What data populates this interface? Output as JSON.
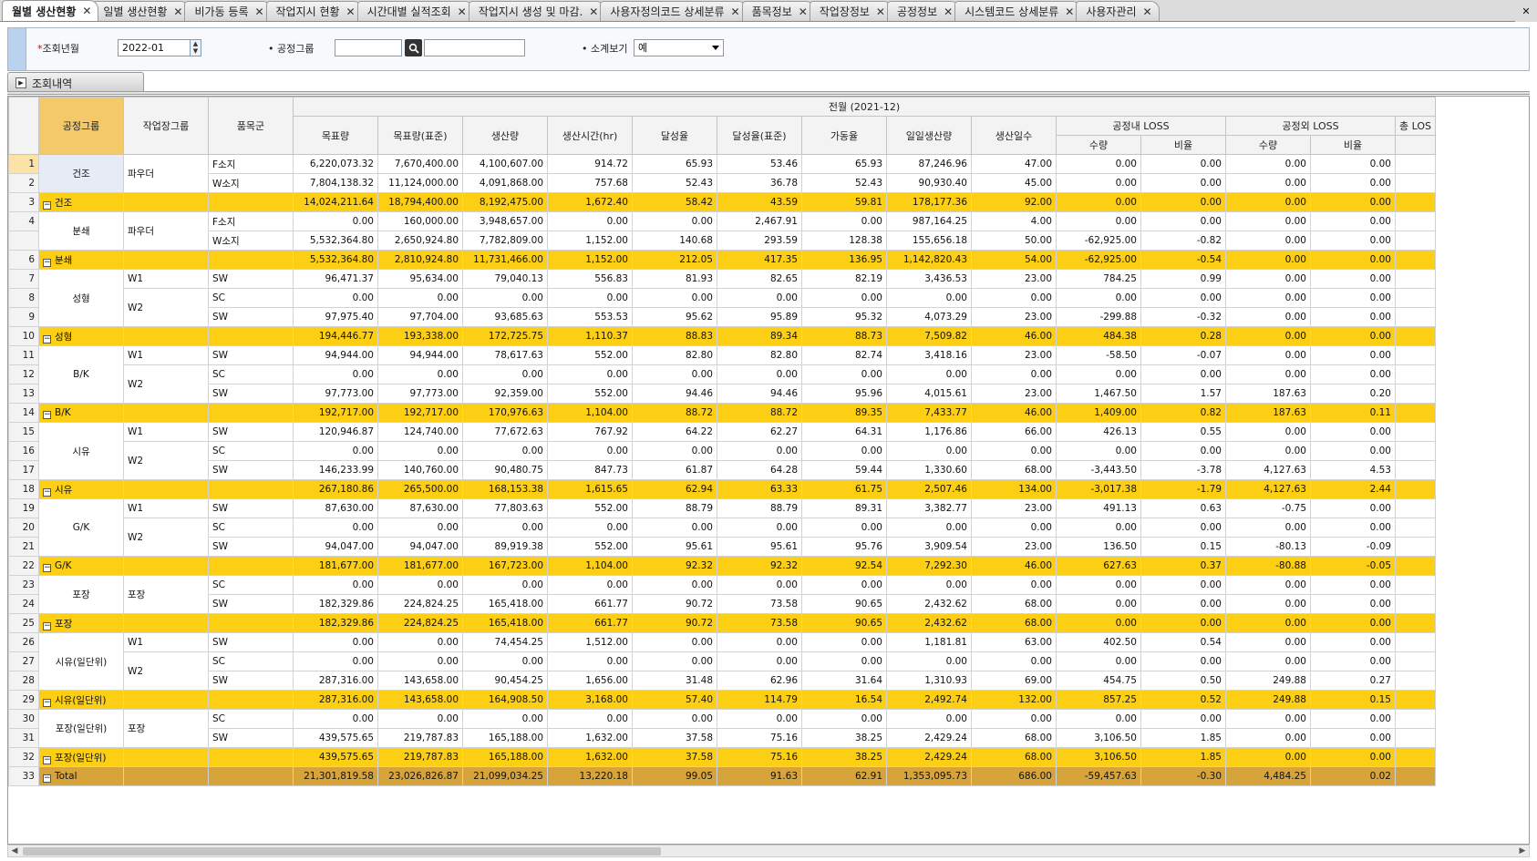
{
  "tabs": [
    {
      "label": "월별 생산현황",
      "active": true
    },
    {
      "label": "일별 생산현황"
    },
    {
      "label": "비가동 등록"
    },
    {
      "label": "작업지시 현황"
    },
    {
      "label": "시간대별 실적조회"
    },
    {
      "label": "작업지시 생성 및 마감."
    },
    {
      "label": "사용자정의코드 상세분류"
    },
    {
      "label": "품목정보"
    },
    {
      "label": "작업장정보"
    },
    {
      "label": "공정정보"
    },
    {
      "label": "시스템코드 상세분류"
    },
    {
      "label": "사용자관리"
    }
  ],
  "tab_close_glyph": "✕",
  "window_close_glyph": "✕",
  "filter": {
    "month_label": "조회년월",
    "month_value": "2022-01",
    "group_label": "공정그룹",
    "subtotal_label": "소계보기",
    "subtotal_value": "예"
  },
  "section_tab": "조회내역",
  "grid": {
    "header_top": {
      "period": "전월 (2021-12)",
      "loss_in": "공정내 LOSS",
      "loss_out": "공정외 LOSS",
      "loss_total": "총 LOS"
    },
    "header_cols": {
      "process_group": "공정그룹",
      "workshop_group": "작업장그룹",
      "item_group": "품목군",
      "target": "목표량",
      "target_std": "목표량(표준)",
      "production": "생산량",
      "prod_hours": "생산시간(hr)",
      "achievement": "달성율",
      "achievement_std": "달성율(표준)",
      "utilization": "가동율",
      "daily_prod": "일일생산량",
      "prod_days": "생산일수",
      "qty": "수량",
      "ratio": "비율"
    },
    "rows": [
      {
        "no": "1",
        "pg": "건조",
        "wg": "파우더",
        "item": "F소지",
        "v": [
          "6,220,073.32",
          "7,670,400.00",
          "4,100,607.00",
          "914.72",
          "65.93",
          "53.46",
          "65.93",
          "87,246.96",
          "47.00",
          "0.00",
          "0.00",
          "0.00",
          "0.00"
        ]
      },
      {
        "no": "2",
        "item": "W소지",
        "v": [
          "7,804,138.32",
          "11,124,000.00",
          "4,091,868.00",
          "757.68",
          "52.43",
          "36.78",
          "52.43",
          "90,930.40",
          "45.00",
          "0.00",
          "0.00",
          "0.00",
          "0.00"
        ]
      },
      {
        "no": "3",
        "type": "sub",
        "label": "건조",
        "v": [
          "14,024,211.64",
          "18,794,400.00",
          "8,192,475.00",
          "1,672.40",
          "58.42",
          "43.59",
          "59.81",
          "178,177.36",
          "92.00",
          "0.00",
          "0.00",
          "0.00",
          "0.00"
        ]
      },
      {
        "no": "4",
        "pg": "분쇄",
        "wg": "파우더",
        "item": "F소지",
        "v": [
          "0.00",
          "160,000.00",
          "3,948,657.00",
          "0.00",
          "0.00",
          "2,467.91",
          "0.00",
          "987,164.25",
          "4.00",
          "0.00",
          "0.00",
          "0.00",
          "0.00"
        ]
      },
      {
        "no": "",
        "item": "W소지",
        "v": [
          "5,532,364.80",
          "2,650,924.80",
          "7,782,809.00",
          "1,152.00",
          "140.68",
          "293.59",
          "128.38",
          "155,656.18",
          "50.00",
          "-62,925.00",
          "-0.82",
          "0.00",
          "0.00"
        ]
      },
      {
        "no": "6",
        "type": "sub",
        "label": "분쇄",
        "v": [
          "5,532,364.80",
          "2,810,924.80",
          "11,731,466.00",
          "1,152.00",
          "212.05",
          "417.35",
          "136.95",
          "1,142,820.43",
          "54.00",
          "-62,925.00",
          "-0.54",
          "0.00",
          "0.00"
        ]
      },
      {
        "no": "7",
        "pg": "성형",
        "wg": "W1",
        "item": "SW",
        "v": [
          "96,471.37",
          "95,634.00",
          "79,040.13",
          "556.83",
          "81.93",
          "82.65",
          "82.19",
          "3,436.53",
          "23.00",
          "784.25",
          "0.99",
          "0.00",
          "0.00"
        ]
      },
      {
        "no": "8",
        "wg": "W2",
        "item": "SC",
        "v": [
          "0.00",
          "0.00",
          "0.00",
          "0.00",
          "0.00",
          "0.00",
          "0.00",
          "0.00",
          "0.00",
          "0.00",
          "0.00",
          "0.00",
          "0.00"
        ]
      },
      {
        "no": "9",
        "item": "SW",
        "v": [
          "97,975.40",
          "97,704.00",
          "93,685.63",
          "553.53",
          "95.62",
          "95.89",
          "95.32",
          "4,073.29",
          "23.00",
          "-299.88",
          "-0.32",
          "0.00",
          "0.00"
        ]
      },
      {
        "no": "10",
        "type": "sub",
        "label": "성형",
        "v": [
          "194,446.77",
          "193,338.00",
          "172,725.75",
          "1,110.37",
          "88.83",
          "89.34",
          "88.73",
          "7,509.82",
          "46.00",
          "484.38",
          "0.28",
          "0.00",
          "0.00"
        ]
      },
      {
        "no": "11",
        "pg": "B/K",
        "wg": "W1",
        "item": "SW",
        "v": [
          "94,944.00",
          "94,944.00",
          "78,617.63",
          "552.00",
          "82.80",
          "82.80",
          "82.74",
          "3,418.16",
          "23.00",
          "-58.50",
          "-0.07",
          "0.00",
          "0.00"
        ]
      },
      {
        "no": "12",
        "wg": "W2",
        "item": "SC",
        "v": [
          "0.00",
          "0.00",
          "0.00",
          "0.00",
          "0.00",
          "0.00",
          "0.00",
          "0.00",
          "0.00",
          "0.00",
          "0.00",
          "0.00",
          "0.00"
        ]
      },
      {
        "no": "13",
        "item": "SW",
        "v": [
          "97,773.00",
          "97,773.00",
          "92,359.00",
          "552.00",
          "94.46",
          "94.46",
          "95.96",
          "4,015.61",
          "23.00",
          "1,467.50",
          "1.57",
          "187.63",
          "0.20"
        ]
      },
      {
        "no": "14",
        "type": "sub",
        "label": "B/K",
        "v": [
          "192,717.00",
          "192,717.00",
          "170,976.63",
          "1,104.00",
          "88.72",
          "88.72",
          "89.35",
          "7,433.77",
          "46.00",
          "1,409.00",
          "0.82",
          "187.63",
          "0.11"
        ]
      },
      {
        "no": "15",
        "pg": "시유",
        "wg": "W1",
        "item": "SW",
        "v": [
          "120,946.87",
          "124,740.00",
          "77,672.63",
          "767.92",
          "64.22",
          "62.27",
          "64.31",
          "1,176.86",
          "66.00",
          "426.13",
          "0.55",
          "0.00",
          "0.00"
        ]
      },
      {
        "no": "16",
        "wg": "W2",
        "item": "SC",
        "v": [
          "0.00",
          "0.00",
          "0.00",
          "0.00",
          "0.00",
          "0.00",
          "0.00",
          "0.00",
          "0.00",
          "0.00",
          "0.00",
          "0.00",
          "0.00"
        ]
      },
      {
        "no": "17",
        "item": "SW",
        "v": [
          "146,233.99",
          "140,760.00",
          "90,480.75",
          "847.73",
          "61.87",
          "64.28",
          "59.44",
          "1,330.60",
          "68.00",
          "-3,443.50",
          "-3.78",
          "4,127.63",
          "4.53"
        ]
      },
      {
        "no": "18",
        "type": "sub",
        "label": "시유",
        "v": [
          "267,180.86",
          "265,500.00",
          "168,153.38",
          "1,615.65",
          "62.94",
          "63.33",
          "61.75",
          "2,507.46",
          "134.00",
          "-3,017.38",
          "-1.79",
          "4,127.63",
          "2.44"
        ]
      },
      {
        "no": "19",
        "pg": "G/K",
        "wg": "W1",
        "item": "SW",
        "v": [
          "87,630.00",
          "87,630.00",
          "77,803.63",
          "552.00",
          "88.79",
          "88.79",
          "89.31",
          "3,382.77",
          "23.00",
          "491.13",
          "0.63",
          "-0.75",
          "0.00"
        ]
      },
      {
        "no": "20",
        "wg": "W2",
        "item": "SC",
        "v": [
          "0.00",
          "0.00",
          "0.00",
          "0.00",
          "0.00",
          "0.00",
          "0.00",
          "0.00",
          "0.00",
          "0.00",
          "0.00",
          "0.00",
          "0.00"
        ]
      },
      {
        "no": "21",
        "item": "SW",
        "v": [
          "94,047.00",
          "94,047.00",
          "89,919.38",
          "552.00",
          "95.61",
          "95.61",
          "95.76",
          "3,909.54",
          "23.00",
          "136.50",
          "0.15",
          "-80.13",
          "-0.09"
        ]
      },
      {
        "no": "22",
        "type": "sub",
        "label": "G/K",
        "v": [
          "181,677.00",
          "181,677.00",
          "167,723.00",
          "1,104.00",
          "92.32",
          "92.32",
          "92.54",
          "7,292.30",
          "46.00",
          "627.63",
          "0.37",
          "-80.88",
          "-0.05"
        ]
      },
      {
        "no": "23",
        "pg": "포장",
        "wg": "포장",
        "item": "SC",
        "v": [
          "0.00",
          "0.00",
          "0.00",
          "0.00",
          "0.00",
          "0.00",
          "0.00",
          "0.00",
          "0.00",
          "0.00",
          "0.00",
          "0.00",
          "0.00"
        ]
      },
      {
        "no": "24",
        "item": "SW",
        "v": [
          "182,329.86",
          "224,824.25",
          "165,418.00",
          "661.77",
          "90.72",
          "73.58",
          "90.65",
          "2,432.62",
          "68.00",
          "0.00",
          "0.00",
          "0.00",
          "0.00"
        ]
      },
      {
        "no": "25",
        "type": "sub",
        "label": "포장",
        "v": [
          "182,329.86",
          "224,824.25",
          "165,418.00",
          "661.77",
          "90.72",
          "73.58",
          "90.65",
          "2,432.62",
          "68.00",
          "0.00",
          "0.00",
          "0.00",
          "0.00"
        ]
      },
      {
        "no": "26",
        "pg": "시유(일단위)",
        "wg": "W1",
        "item": "SW",
        "v": [
          "0.00",
          "0.00",
          "74,454.25",
          "1,512.00",
          "0.00",
          "0.00",
          "0.00",
          "1,181.81",
          "63.00",
          "402.50",
          "0.54",
          "0.00",
          "0.00"
        ]
      },
      {
        "no": "27",
        "wg": "W2",
        "item": "SC",
        "v": [
          "0.00",
          "0.00",
          "0.00",
          "0.00",
          "0.00",
          "0.00",
          "0.00",
          "0.00",
          "0.00",
          "0.00",
          "0.00",
          "0.00",
          "0.00"
        ]
      },
      {
        "no": "28",
        "item": "SW",
        "v": [
          "287,316.00",
          "143,658.00",
          "90,454.25",
          "1,656.00",
          "31.48",
          "62.96",
          "31.64",
          "1,310.93",
          "69.00",
          "454.75",
          "0.50",
          "249.88",
          "0.27"
        ]
      },
      {
        "no": "29",
        "type": "sub",
        "label": "시유(일단위)",
        "v": [
          "287,316.00",
          "143,658.00",
          "164,908.50",
          "3,168.00",
          "57.40",
          "114.79",
          "16.54",
          "2,492.74",
          "132.00",
          "857.25",
          "0.52",
          "249.88",
          "0.15"
        ]
      },
      {
        "no": "30",
        "pg": "포장(일단위)",
        "wg": "포장",
        "item": "SC",
        "v": [
          "0.00",
          "0.00",
          "0.00",
          "0.00",
          "0.00",
          "0.00",
          "0.00",
          "0.00",
          "0.00",
          "0.00",
          "0.00",
          "0.00",
          "0.00"
        ]
      },
      {
        "no": "31",
        "item": "SW",
        "v": [
          "439,575.65",
          "219,787.83",
          "165,188.00",
          "1,632.00",
          "37.58",
          "75.16",
          "38.25",
          "2,429.24",
          "68.00",
          "3,106.50",
          "1.85",
          "0.00",
          "0.00"
        ]
      },
      {
        "no": "32",
        "type": "sub",
        "label": "포장(일단위)",
        "v": [
          "439,575.65",
          "219,787.83",
          "165,188.00",
          "1,632.00",
          "37.58",
          "75.16",
          "38.25",
          "2,429.24",
          "68.00",
          "3,106.50",
          "1.85",
          "0.00",
          "0.00"
        ]
      },
      {
        "no": "33",
        "type": "tot",
        "label": "Total",
        "v": [
          "21,301,819.58",
          "23,026,826.87",
          "21,099,034.25",
          "13,220.18",
          "99.05",
          "91.63",
          "62.91",
          "1,353,095.73",
          "686.00",
          "-59,457.63",
          "-0.30",
          "4,484.25",
          "0.02"
        ]
      }
    ]
  },
  "colors": {
    "subtotal_row": "#fdcf14",
    "total_row": "#d6a43b",
    "selected_header": "#f4c96a"
  }
}
